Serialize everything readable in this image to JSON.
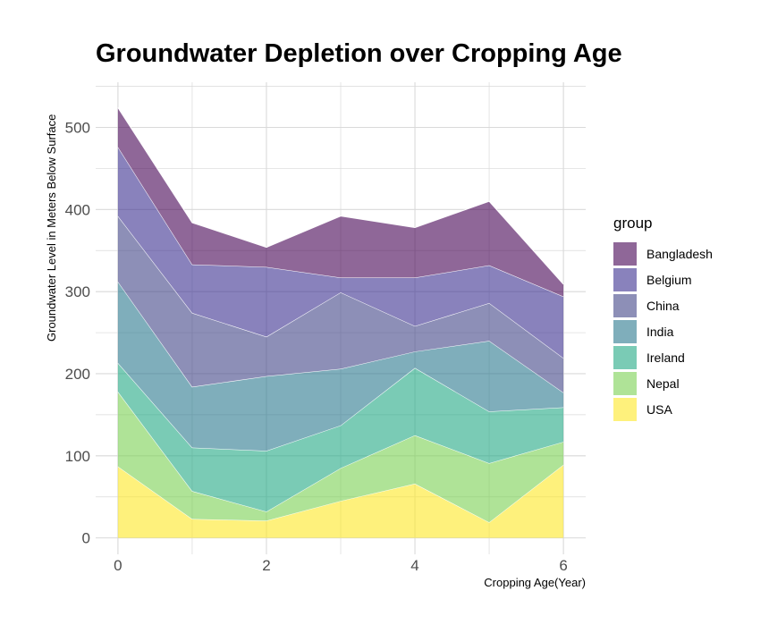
{
  "chart_data": {
    "type": "area",
    "stacked": true,
    "title": "Groundwater Depletion over Cropping Age",
    "xlabel": "Cropping Age(Year)",
    "ylabel": "Groundwater Level in Meters Below Surface",
    "xlim": [
      -0.3,
      6.3
    ],
    "ylim": [
      -20,
      555
    ],
    "x_ticks": [
      0,
      2,
      4,
      6
    ],
    "y_ticks": [
      0,
      100,
      200,
      300,
      400,
      500
    ],
    "grid": true,
    "legend_title": "group",
    "legend_position": "right",
    "x": [
      0,
      1,
      2,
      3,
      4,
      5,
      6
    ],
    "series": [
      {
        "name": "USA",
        "color": "#FDE725",
        "values": [
          87,
          23,
          21,
          45,
          66,
          19,
          89
        ]
      },
      {
        "name": "Nepal",
        "color": "#7AD151",
        "values": [
          91,
          34,
          11,
          40,
          59,
          72,
          28
        ]
      },
      {
        "name": "Ireland",
        "color": "#22A884",
        "values": [
          35,
          53,
          74,
          52,
          82,
          63,
          42
        ]
      },
      {
        "name": "India",
        "color": "#2A788E",
        "values": [
          99,
          74,
          91,
          69,
          20,
          86,
          18
        ]
      },
      {
        "name": "China",
        "color": "#414487",
        "values": [
          80,
          90,
          48,
          93,
          31,
          46,
          42
        ]
      },
      {
        "name": "Belgium",
        "color": "#3B2F8F",
        "values": [
          84,
          59,
          85,
          18,
          59,
          46,
          75
        ]
      },
      {
        "name": "Bangladesh",
        "color": "#440154",
        "values": [
          48,
          51,
          24,
          75,
          61,
          78,
          15
        ]
      }
    ]
  }
}
